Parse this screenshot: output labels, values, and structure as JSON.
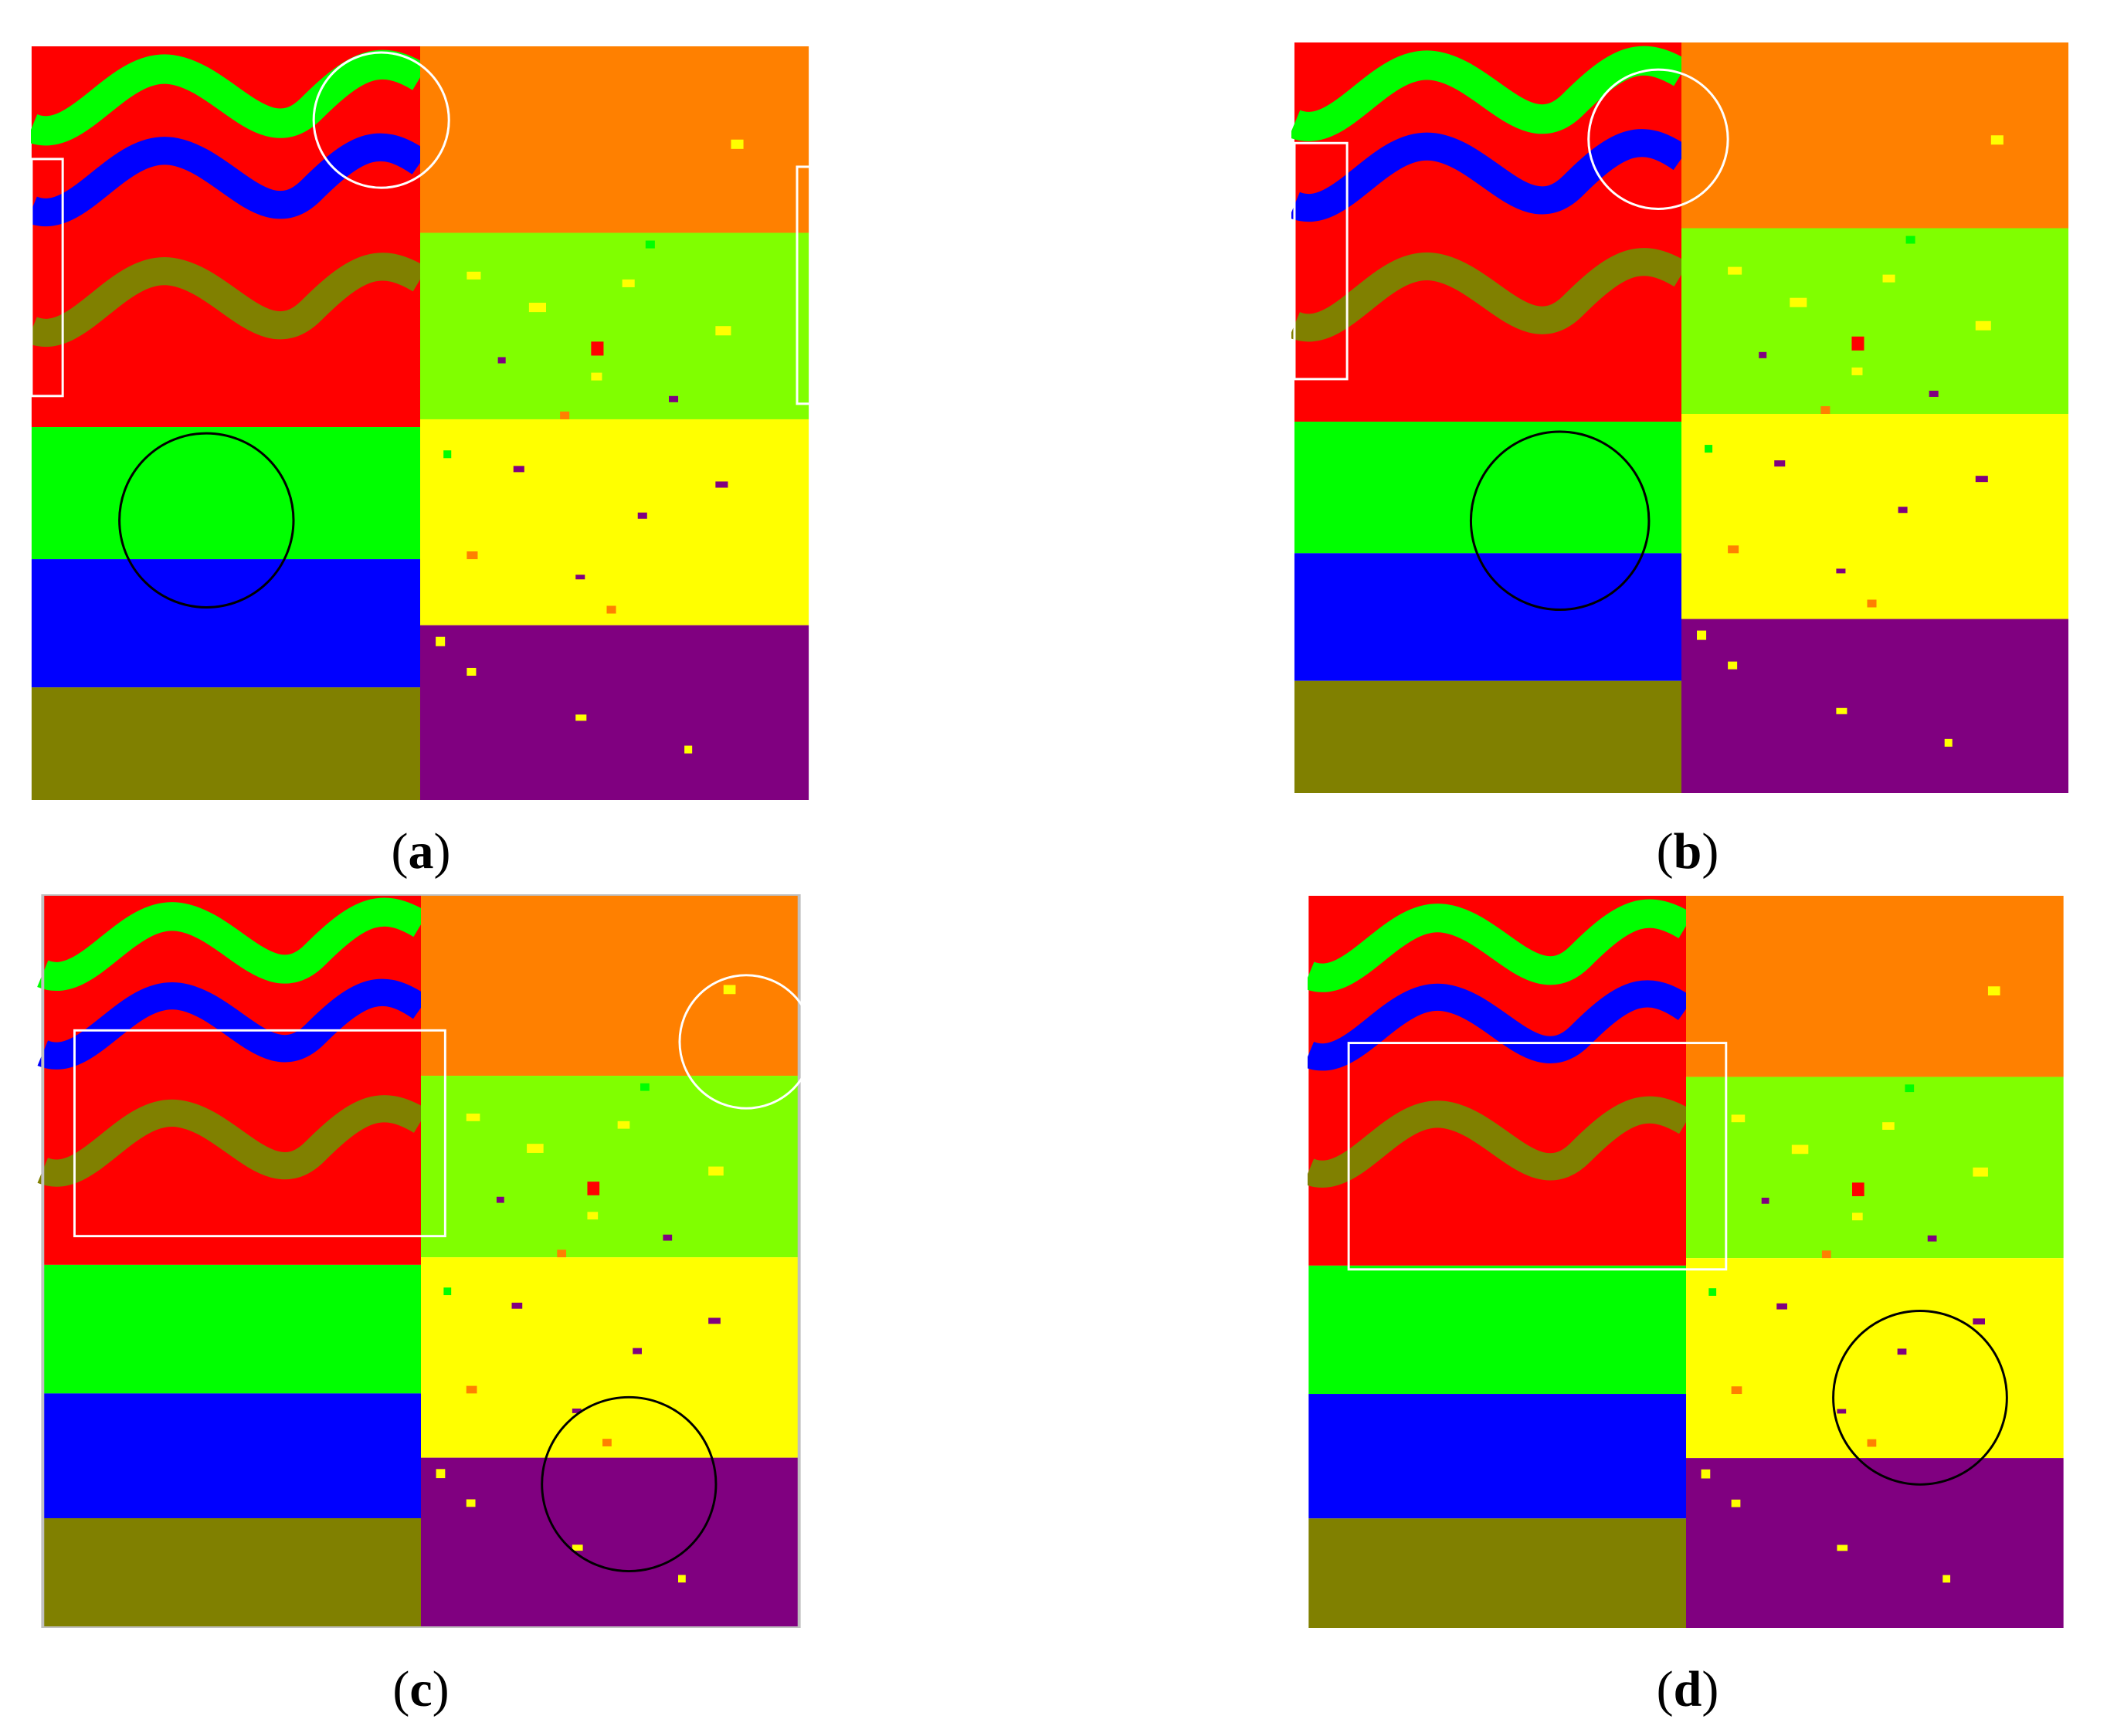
{
  "figure": {
    "panels": [
      {
        "id": "a",
        "caption": "(a)",
        "label": "a"
      },
      {
        "id": "b",
        "caption": "(b)",
        "label": "b"
      },
      {
        "id": "c",
        "caption": "(c)",
        "label": "c"
      },
      {
        "id": "d",
        "caption": "(d)",
        "label": "d"
      }
    ],
    "colors": {
      "red": "#ff0000",
      "green": "#00ff00",
      "blue": "#0000ff",
      "olive": "#808000",
      "orange": "#ff8000",
      "light_green": "#80ff00",
      "yellow": "#ffff00",
      "purple": "#800080",
      "marker_white": "#ffffff",
      "marker_black": "#000000"
    }
  }
}
